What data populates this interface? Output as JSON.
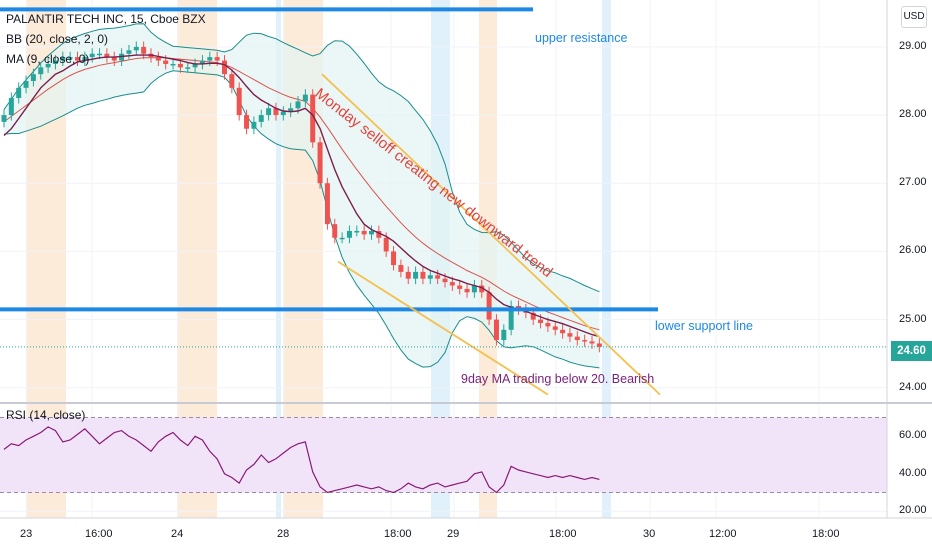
{
  "header": {
    "symbol_line": "PALANTIR TECH INC, 15, Cboe BZX",
    "bb_line": "BB (20, close, 2, 0)",
    "ma_line": "MA (9, close, 0)",
    "rsi_line": "RSI (14, close)",
    "currency": "USD",
    "last_price": "24.60"
  },
  "annotations": {
    "upper_resistance": "upper resistance",
    "lower_support": "lower support line",
    "monday_selloff": "Monday selloff creating new downward trend",
    "ma_note": "9day MA trading below 20. Bearish"
  },
  "colors": {
    "resistance_line": "#1e88e5",
    "trend_line": "#f6c04e",
    "up_candle": "#26a69a",
    "down_candle": "#ef5350",
    "bb_band": "#1a8c8c",
    "ma_line": "#7a1f4d",
    "rsi_line": "#8a1a75",
    "rsi_fill": "#f1e3f8",
    "session_highlight": "#fde7d2",
    "blue_highlight": "#dbeefb",
    "selloff_text": "#e0443e",
    "ma_note_text": "#7a1f7a"
  },
  "chart_data": {
    "type": "candlestick",
    "price_axis": {
      "ticks": [
        "29.00",
        "28.00",
        "27.00",
        "26.00",
        "25.00",
        "24.00"
      ],
      "range": [
        23.85,
        29.6
      ]
    },
    "rsi_axis": {
      "ticks": [
        "60.00",
        "40.00",
        "20.00"
      ],
      "range": [
        18,
        74
      ],
      "band": [
        30,
        70
      ]
    },
    "time_axis": [
      "23",
      "16:00",
      "24",
      "28",
      "18:00",
      "29",
      "18:00",
      "30",
      "12:00",
      "18:00"
    ],
    "levels": {
      "upper_resistance": 29.55,
      "lower_support": 25.15,
      "last_price": 24.6
    },
    "series": [
      {
        "name": "price",
        "close": [
          28.0,
          28.25,
          28.4,
          28.5,
          28.6,
          28.7,
          28.75,
          28.8,
          28.85,
          28.85,
          28.8,
          28.85,
          28.9,
          28.9,
          28.85,
          28.8,
          28.9,
          28.95,
          29.0,
          28.9,
          28.85,
          28.8,
          28.75,
          28.75,
          28.7,
          28.7,
          28.75,
          28.8,
          28.85,
          28.8,
          28.6,
          28.4,
          28.0,
          27.8,
          27.9,
          28.0,
          28.1,
          28.0,
          28.05,
          28.1,
          28.2,
          28.3,
          27.6,
          27.0,
          26.4,
          26.2,
          26.2,
          26.3,
          26.3,
          26.25,
          26.3,
          26.2,
          26.0,
          25.8,
          25.7,
          25.6,
          25.7,
          25.6,
          25.65,
          25.6,
          25.55,
          25.5,
          25.45,
          25.4,
          25.5,
          25.4,
          25.0,
          24.7,
          24.85,
          25.2,
          25.15,
          25.1,
          25.0,
          24.95,
          24.9,
          24.85,
          24.8,
          24.75,
          24.7,
          24.68,
          24.65,
          24.6
        ]
      },
      {
        "name": "MA 9",
        "values": [
          27.7,
          27.8,
          27.95,
          28.1,
          28.25,
          28.4,
          28.5,
          28.6,
          28.65,
          28.72,
          28.78,
          28.8,
          28.82,
          28.84,
          28.85,
          28.85,
          28.86,
          28.87,
          28.88,
          28.88,
          28.88,
          28.86,
          28.84,
          28.82,
          28.8,
          28.77,
          28.75,
          28.75,
          28.76,
          28.76,
          28.74,
          28.66,
          28.55,
          28.42,
          28.3,
          28.22,
          28.16,
          28.1,
          28.06,
          28.05,
          28.06,
          28.1,
          28.0,
          27.8,
          27.5,
          27.2,
          26.95,
          26.75,
          26.55,
          26.4,
          26.32,
          26.27,
          26.22,
          26.15,
          26.05,
          25.95,
          25.86,
          25.78,
          25.72,
          25.68,
          25.64,
          25.6,
          25.57,
          25.53,
          25.5,
          25.47,
          25.4,
          25.3,
          25.22,
          25.18,
          25.15,
          25.12,
          25.08,
          25.04,
          25.0,
          24.97,
          24.94,
          24.9,
          24.86,
          24.82,
          24.78,
          24.75
        ]
      },
      {
        "name": "BB basis",
        "values": [
          27.9,
          27.98,
          28.06,
          28.14,
          28.22,
          28.3,
          28.38,
          28.45,
          28.52,
          28.58,
          28.63,
          28.67,
          28.7,
          28.73,
          28.75,
          28.77,
          28.79,
          28.81,
          28.83,
          28.84,
          28.84,
          28.84,
          28.84,
          28.83,
          28.82,
          28.81,
          28.8,
          28.79,
          28.78,
          28.77,
          28.74,
          28.7,
          28.64,
          28.58,
          28.52,
          28.46,
          28.4,
          28.35,
          28.3,
          28.26,
          28.23,
          28.2,
          28.1,
          27.97,
          27.82,
          27.66,
          27.5,
          27.35,
          27.2,
          27.06,
          26.92,
          26.79,
          26.66,
          26.54,
          26.42,
          26.31,
          26.21,
          26.12,
          26.04,
          25.97,
          25.9,
          25.84,
          25.78,
          25.72,
          25.67,
          25.62,
          25.56,
          25.49,
          25.42,
          25.36,
          25.31,
          25.26,
          25.21,
          25.16,
          25.11,
          25.07,
          25.03,
          24.99,
          24.95,
          24.91,
          24.88,
          24.85
        ]
      },
      {
        "name": "RSI 14",
        "values": [
          53,
          56,
          55,
          58,
          60,
          62,
          65,
          63,
          57,
          58,
          61,
          64,
          60,
          56,
          59,
          62,
          63,
          60,
          58,
          55,
          52,
          57,
          60,
          62,
          58,
          55,
          60,
          58,
          52,
          48,
          40,
          38,
          35,
          42,
          45,
          50,
          46,
          48,
          51,
          54,
          56,
          57,
          41,
          33,
          30,
          31,
          32,
          33,
          34,
          33,
          32,
          33,
          31,
          30,
          32,
          35,
          33,
          32,
          34,
          35,
          33,
          34,
          35,
          36,
          40,
          41,
          33,
          30,
          34,
          44,
          42,
          41,
          40,
          39,
          38,
          39,
          38,
          39,
          38,
          37,
          38,
          37
        ]
      }
    ]
  }
}
